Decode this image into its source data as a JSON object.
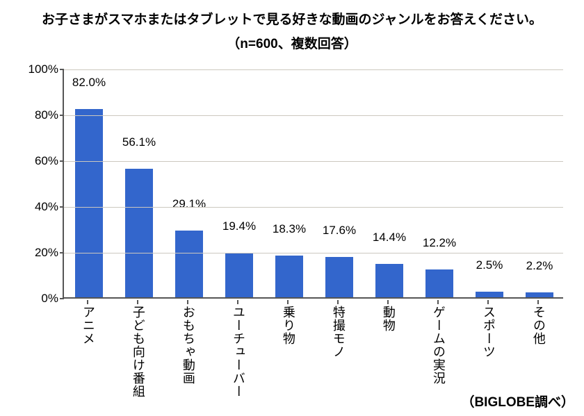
{
  "title_line1": "お子さまがスマホまたはタブレットで見る好きな動画のジャンルをお答えください。",
  "title_line2": "（n=600、複数回答）",
  "source": "（BIGLOBE調べ）",
  "chart": {
    "type": "bar",
    "ylim": [
      0,
      100
    ],
    "ytick_step": 20,
    "ytick_suffix": "%",
    "value_label_suffix": "%",
    "value_label_decimals": 1,
    "bar_color": "#3366cc",
    "grid_color": "#ccc8bf",
    "axis_color": "#555555",
    "background_color": "#ffffff",
    "bar_width_ratio": 0.55,
    "label_fontsize": 17,
    "xlabel_fontsize": 18,
    "value_fontsize": 17,
    "categories": [
      "アニメ",
      "子ども向け番組",
      "おもちゃ動画",
      "ユーチューバー",
      "乗り物",
      "特撮モノ",
      "動物",
      "ゲームの実況",
      "スポーツ",
      "その他"
    ],
    "values": [
      82.0,
      56.1,
      29.1,
      19.4,
      18.3,
      17.6,
      14.4,
      12.2,
      2.5,
      2.2
    ]
  }
}
